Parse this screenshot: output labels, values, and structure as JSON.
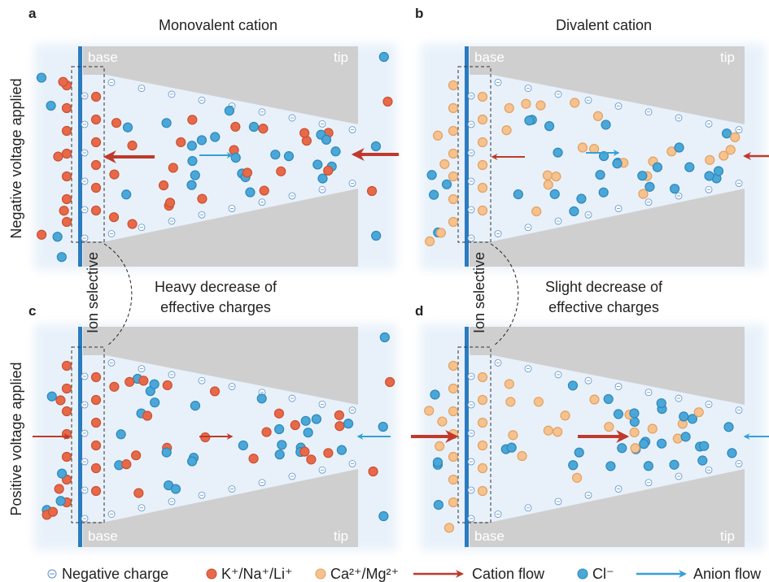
{
  "panels": [
    {
      "label": "a",
      "title": "Monovalent cation",
      "base": "base",
      "tip": "tip"
    },
    {
      "label": "b",
      "title": "Divalent cation",
      "base": "base",
      "tip": "tip"
    },
    {
      "label": "c",
      "base": "base",
      "tip": "tip"
    },
    {
      "label": "d",
      "base": "base",
      "tip": "tip"
    }
  ],
  "row_labels": [
    "Negative voltage applied",
    "Positive voltage applied"
  ],
  "ion_selective": [
    "Ion selective",
    "Ion selective"
  ],
  "notes": [
    {
      "line1": "Heavy decrease of",
      "line2": "effective charges"
    },
    {
      "line1": "Slight decrease of",
      "line2": "effective charges"
    }
  ],
  "legend": [
    "Negative charge",
    "K⁺/Na⁺/Li⁺",
    "Ca²⁺/Mg²⁺",
    "Cation flow",
    "Cl⁻",
    "Anion flow"
  ]
}
